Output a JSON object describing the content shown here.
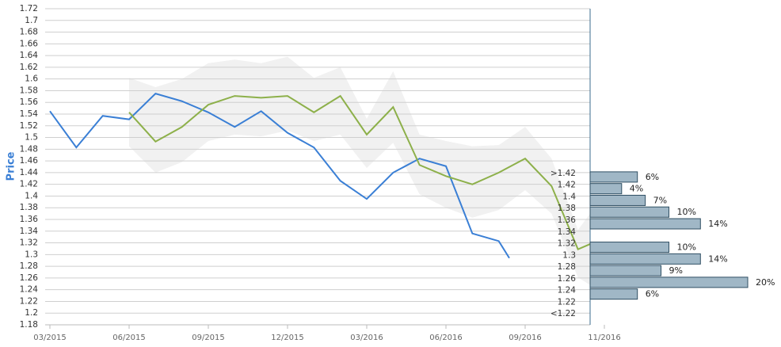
{
  "chart_data": [
    {
      "type": "line",
      "y_label": "Price",
      "xlim": [
        -0.18,
        20.46
      ],
      "xticks": [
        {
          "value": 0,
          "label": "03/2015"
        },
        {
          "value": 3,
          "label": "06/2015"
        },
        {
          "value": 6,
          "label": "09/2015"
        },
        {
          "value": 9,
          "label": "12/2015"
        },
        {
          "value": 12,
          "label": "03/2016"
        },
        {
          "value": 15,
          "label": "06/2016"
        },
        {
          "value": 18,
          "label": "09/2016"
        },
        {
          "value": 21,
          "label": "11/2016"
        }
      ],
      "ylim": [
        1.18,
        1.72
      ],
      "yticks": [
        1.18,
        1.2,
        1.22,
        1.24,
        1.26,
        1.28,
        1.3,
        1.32,
        1.34,
        1.36,
        1.38,
        1.4,
        1.42,
        1.44,
        1.46,
        1.48,
        1.5,
        1.52,
        1.54,
        1.56,
        1.58,
        1.6,
        1.62,
        1.64,
        1.66,
        1.68,
        1.7,
        1.72
      ],
      "grid": true,
      "band": {
        "color": "#f1f1f1",
        "x": [
          3,
          4,
          5,
          6,
          7,
          8,
          9,
          10,
          11,
          12,
          13,
          14,
          15,
          16,
          17,
          18,
          19,
          20,
          20.46
        ],
        "upper": [
          1.602,
          1.586,
          1.6,
          1.627,
          1.633,
          1.627,
          1.638,
          1.602,
          1.62,
          1.532,
          1.613,
          1.505,
          1.494,
          1.485,
          1.487,
          1.518,
          1.464,
          1.342,
          1.37
        ],
        "lower": [
          1.485,
          1.44,
          1.458,
          1.494,
          1.505,
          1.502,
          1.512,
          1.494,
          1.505,
          1.448,
          1.491,
          1.403,
          1.38,
          1.363,
          1.376,
          1.41,
          1.37,
          1.261,
          1.248
        ]
      },
      "series": [
        {
          "color": "#3a7fd5",
          "x": [
            0,
            1,
            2,
            3,
            4,
            5,
            6,
            7,
            8,
            9,
            10,
            11,
            12,
            13,
            14,
            15,
            16,
            17,
            17.4
          ],
          "values": [
            1.545,
            1.483,
            1.537,
            1.531,
            1.575,
            1.562,
            1.543,
            1.518,
            1.545,
            1.508,
            1.483,
            1.426,
            1.395,
            1.44,
            1.464,
            1.451,
            1.336,
            1.323,
            1.294
          ]
        },
        {
          "color": "#8db04a",
          "x": [
            3,
            4,
            5,
            6,
            7,
            8,
            9,
            10,
            11,
            12,
            13,
            14,
            15,
            16,
            17,
            18,
            19,
            20,
            20.46
          ],
          "values": [
            1.543,
            1.493,
            1.518,
            1.556,
            1.571,
            1.568,
            1.571,
            1.543,
            1.571,
            1.505,
            1.552,
            1.453,
            1.434,
            1.42,
            1.44,
            1.464,
            1.417,
            1.309,
            1.318
          ]
        }
      ]
    },
    {
      "type": "bar",
      "orientation": "horizontal",
      "categories": [
        ">1.42",
        "1.42",
        "1.4",
        "1.38",
        "1.36",
        "1.34",
        "1.32",
        "1.3",
        "1.28",
        "1.26",
        "1.24",
        "1.22",
        "<1.22"
      ],
      "values": [
        6,
        4,
        7,
        10,
        14,
        null,
        10,
        14,
        9,
        20,
        6,
        null,
        null
      ],
      "value_labels": [
        "6%",
        "4%",
        "7%",
        "10%",
        "14%",
        null,
        "10%",
        "14%",
        "9%",
        "20%",
        "6%",
        null,
        null
      ],
      "xlim": [
        0,
        20
      ],
      "color": "#a0b7c6",
      "edge_color": "#2f4f63"
    }
  ]
}
